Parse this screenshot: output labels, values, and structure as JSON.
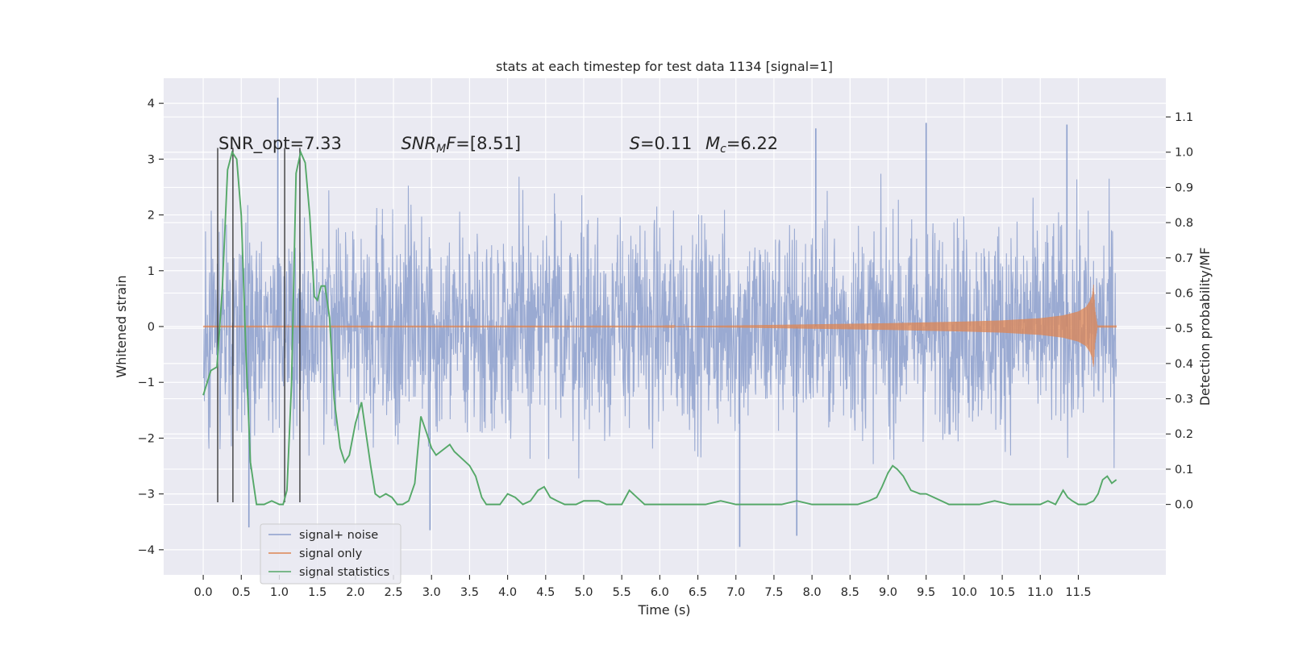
{
  "chart_data": {
    "type": "line",
    "title": "stats at each timestep for test data 1134 [signal=1]",
    "xlabel": "Time (s)",
    "ylabel": "Whitened strain",
    "ylabel_right": "Detection probability/MF",
    "xlim": [
      -0.52,
      12.65
    ],
    "ylim": [
      -4.45,
      4.45
    ],
    "ylim_right": [
      -0.2,
      1.21
    ],
    "x_ticks": [
      0.0,
      0.5,
      1.0,
      1.5,
      2.0,
      2.5,
      3.0,
      3.5,
      4.0,
      4.5,
      5.0,
      5.5,
      6.0,
      6.5,
      7.0,
      7.5,
      8.0,
      8.5,
      9.0,
      9.5,
      10.0,
      10.5,
      11.0,
      11.5
    ],
    "x_tick_labels": [
      "0.0",
      "0.5",
      "1.0",
      "1.5",
      "2.0",
      "2.5",
      "3.0",
      "3.5",
      "4.0",
      "4.5",
      "5.0",
      "5.5",
      "6.0",
      "6.5",
      "7.0",
      "7.5",
      "8.0",
      "8.5",
      "9.0",
      "9.5",
      "10.0",
      "10.5",
      "11.0",
      "11.5"
    ],
    "y_ticks": [
      -4,
      -3,
      -2,
      -1,
      0,
      1,
      2,
      3,
      4
    ],
    "y_tick_labels": [
      "−4",
      "−3",
      "−2",
      "−1",
      "0",
      "1",
      "2",
      "3",
      "4"
    ],
    "y_ticks_right": [
      0.0,
      0.1,
      0.2,
      0.3,
      0.4,
      0.5,
      0.6,
      0.7,
      0.8,
      0.9,
      1.0,
      1.1
    ],
    "y_tick_labels_right": [
      "0.0",
      "0.1",
      "0.2",
      "0.3",
      "0.4",
      "0.5",
      "0.6",
      "0.7",
      "0.8",
      "0.9",
      "1.0",
      "1.1"
    ],
    "grid": true,
    "legend_position": "lower-left",
    "series": [
      {
        "name": "signal+ noise",
        "axis": "left",
        "color": "#8c9fcc",
        "x_range": [
          0.0,
          12.0
        ],
        "typical_range": [
          -1.6,
          1.6
        ],
        "extremes": [
          {
            "x": 0.98,
            "y": 4.1
          },
          {
            "x": 9.5,
            "y": 3.65
          },
          {
            "x": 11.35,
            "y": 3.62
          },
          {
            "x": 8.05,
            "y": 3.55
          },
          {
            "x": 0.6,
            "y": -3.6
          },
          {
            "x": 2.98,
            "y": -3.65
          },
          {
            "x": 7.05,
            "y": -3.95
          },
          {
            "x": 7.8,
            "y": -3.75
          }
        ]
      },
      {
        "name": "signal only",
        "axis": "left",
        "color": "#dd8452",
        "x": [
          0.0,
          6.0,
          7.0,
          8.0,
          9.0,
          10.0,
          10.5,
          11.0,
          11.3,
          11.5,
          11.6,
          11.65,
          11.68,
          11.7,
          11.72,
          11.75,
          12.0
        ],
        "envelope": [
          0.005,
          0.005,
          0.02,
          0.04,
          0.06,
          0.09,
          0.11,
          0.15,
          0.2,
          0.27,
          0.35,
          0.45,
          0.55,
          0.75,
          0.3,
          0.02,
          0.02
        ]
      },
      {
        "name": "signal statistics",
        "axis": "right",
        "color": "#55a868",
        "x": [
          0.0,
          0.1,
          0.18,
          0.25,
          0.32,
          0.38,
          0.44,
          0.5,
          0.56,
          0.62,
          0.7,
          0.8,
          0.9,
          1.0,
          1.05,
          1.1,
          1.16,
          1.22,
          1.28,
          1.34,
          1.4,
          1.46,
          1.5,
          1.55,
          1.6,
          1.66,
          1.72,
          1.8,
          1.86,
          1.92,
          2.0,
          2.08,
          2.14,
          2.2,
          2.26,
          2.32,
          2.4,
          2.48,
          2.55,
          2.62,
          2.7,
          2.78,
          2.86,
          2.94,
          3.0,
          3.06,
          3.12,
          3.18,
          3.24,
          3.3,
          3.4,
          3.5,
          3.58,
          3.66,
          3.72,
          3.8,
          3.9,
          4.0,
          4.1,
          4.2,
          4.3,
          4.4,
          4.48,
          4.56,
          4.65,
          4.75,
          4.9,
          5.0,
          5.1,
          5.2,
          5.3,
          5.4,
          5.5,
          5.6,
          5.7,
          5.8,
          5.9,
          6.0,
          6.2,
          6.4,
          6.6,
          6.8,
          7.0,
          7.2,
          7.4,
          7.6,
          7.8,
          8.0,
          8.2,
          8.4,
          8.6,
          8.75,
          8.85,
          8.92,
          9.0,
          9.06,
          9.12,
          9.2,
          9.3,
          9.42,
          9.5,
          9.6,
          9.7,
          9.8,
          9.9,
          10.0,
          10.2,
          10.4,
          10.6,
          10.8,
          11.0,
          11.1,
          11.2,
          11.3,
          11.36,
          11.42,
          11.5,
          11.6,
          11.7,
          11.76,
          11.82,
          11.88,
          11.94,
          12.0
        ],
        "values": [
          0.31,
          0.38,
          0.39,
          0.61,
          0.95,
          1.0,
          0.98,
          0.82,
          0.44,
          0.12,
          0.0,
          0.0,
          0.01,
          0.0,
          0.0,
          0.04,
          0.34,
          0.94,
          1.0,
          0.97,
          0.82,
          0.59,
          0.58,
          0.62,
          0.62,
          0.53,
          0.3,
          0.16,
          0.12,
          0.14,
          0.23,
          0.29,
          0.2,
          0.11,
          0.03,
          0.02,
          0.03,
          0.02,
          0.0,
          0.0,
          0.01,
          0.06,
          0.25,
          0.2,
          0.16,
          0.14,
          0.15,
          0.16,
          0.17,
          0.15,
          0.13,
          0.11,
          0.08,
          0.02,
          0.0,
          0.0,
          0.0,
          0.03,
          0.02,
          0.0,
          0.01,
          0.04,
          0.05,
          0.02,
          0.01,
          0.0,
          0.0,
          0.01,
          0.01,
          0.01,
          0.0,
          0.0,
          0.0,
          0.04,
          0.02,
          0.0,
          0.0,
          0.0,
          0.0,
          0.0,
          0.0,
          0.01,
          0.0,
          0.0,
          0.0,
          0.0,
          0.01,
          0.0,
          0.0,
          0.0,
          0.0,
          0.01,
          0.02,
          0.05,
          0.09,
          0.11,
          0.1,
          0.08,
          0.04,
          0.03,
          0.03,
          0.02,
          0.01,
          0.0,
          0.0,
          0.0,
          0.0,
          0.01,
          0.0,
          0.0,
          0.0,
          0.01,
          0.0,
          0.04,
          0.02,
          0.01,
          0.0,
          0.0,
          0.01,
          0.03,
          0.07,
          0.08,
          0.06,
          0.07
        ]
      }
    ],
    "vertical_lines": [
      0.19,
      0.39,
      1.07,
      1.27
    ],
    "vertical_lines_range": [
      -3.15,
      3.2
    ],
    "vertical_lines_color": "#3c3c3c",
    "annotations": [
      {
        "id": "snr_opt",
        "x": 0.2,
        "y": 3.18,
        "parts": [
          {
            "text": "SNR_opt=7.33",
            "italic": false
          }
        ]
      },
      {
        "id": "snr_mf",
        "x": 2.6,
        "y": 3.18,
        "parts": [
          {
            "text": "SNR",
            "italic": true
          },
          {
            "text": "M",
            "italic": true,
            "sub": true
          },
          {
            "text": "F",
            "italic": true
          },
          {
            "text": "=[8.51]",
            "italic": false
          }
        ]
      },
      {
        "id": "s_val",
        "x": 5.6,
        "y": 3.18,
        "parts": [
          {
            "text": "S",
            "italic": true
          },
          {
            "text": "=0.11",
            "italic": false
          }
        ]
      },
      {
        "id": "mc_val",
        "x": 6.6,
        "y": 3.18,
        "parts": [
          {
            "text": "M",
            "italic": true
          },
          {
            "text": "c",
            "italic": true,
            "sub": true
          },
          {
            "text": "=6.22",
            "italic": false
          }
        ]
      }
    ],
    "colors": {
      "axes_background": "#eaeaf2",
      "grid": "#ffffff",
      "text": "#262626"
    }
  }
}
